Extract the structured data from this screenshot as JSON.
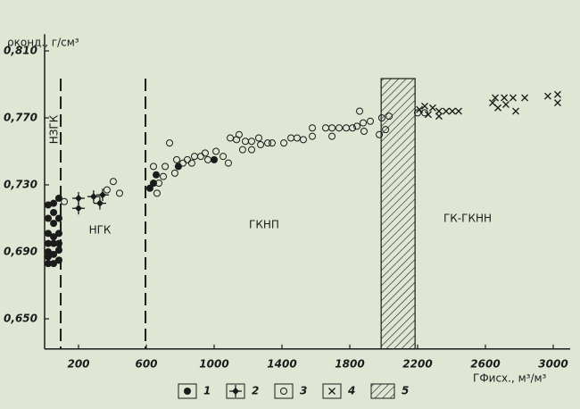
{
  "chart_data": {
    "type": "scatter",
    "y_label": "ρконд., г/см³",
    "x_label": "ГФисх., м³/м³",
    "xlim": [
      0,
      3100
    ],
    "ylim": [
      0.632,
      0.82
    ],
    "xticks": [
      200,
      600,
      1000,
      1400,
      1800,
      2200,
      2600,
      3000
    ],
    "yticks": [
      {
        "value": 0.65,
        "label": "0,650"
      },
      {
        "value": 0.69,
        "label": "0,690"
      },
      {
        "value": 0.73,
        "label": "0,730"
      },
      {
        "value": 0.77,
        "label": "0,770"
      },
      {
        "value": 0.81,
        "label": "0,810"
      }
    ],
    "boundaries": [
      95,
      595
    ],
    "annotations": [
      "НЗГК",
      "НГК",
      "ГКНП",
      "ГК-ГКНН"
    ],
    "band": {
      "name": "5",
      "range": [
        1985,
        2185
      ]
    },
    "color": "#1b1b1b",
    "series": [
      {
        "name": "1",
        "marker": "filled-circle",
        "x": [
          21,
          53,
          84,
          53,
          21,
          53,
          84,
          21,
          53,
          84,
          21,
          53,
          84,
          21,
          53,
          84,
          21,
          53,
          84,
          21,
          621,
          642,
          658,
          789,
          1000
        ],
        "values": [
          0.718,
          0.719,
          0.722,
          0.7135,
          0.71,
          0.707,
          0.71,
          0.701,
          0.699,
          0.701,
          0.695,
          0.695,
          0.695,
          0.69,
          0.6885,
          0.691,
          0.683,
          0.683,
          0.685,
          0.687,
          0.728,
          0.731,
          0.736,
          0.741,
          0.745
        ]
      },
      {
        "name": "2",
        "marker": "crossed-diamond",
        "x": [
          200,
          200,
          289,
          342,
          326
        ],
        "values": [
          0.722,
          0.716,
          0.723,
          0.724,
          0.719
        ]
      },
      {
        "name": "3",
        "marker": "open-circle",
        "x": [
          116,
          368,
          405,
          442,
          642,
          663,
          674,
          700,
          737,
          711,
          768,
          779,
          816,
          842,
          868,
          884,
          921,
          947,
          963,
          1011,
          1053,
          1084,
          1095,
          1132,
          1147,
          1168,
          1184,
          1221,
          1221,
          1263,
          1274,
          1316,
          1342,
          1411,
          1453,
          1489,
          1526,
          1579,
          1579,
          1658,
          1695,
          1695,
          1737,
          1779,
          1816,
          1842,
          1858,
          1879,
          1884,
          1921,
          1974,
          1989,
          2011,
          2032,
          2200,
          2242
        ],
        "values": [
          0.72,
          0.727,
          0.732,
          0.725,
          0.741,
          0.725,
          0.731,
          0.735,
          0.755,
          0.741,
          0.737,
          0.745,
          0.743,
          0.745,
          0.743,
          0.747,
          0.747,
          0.749,
          0.745,
          0.75,
          0.747,
          0.743,
          0.758,
          0.757,
          0.76,
          0.751,
          0.756,
          0.756,
          0.751,
          0.758,
          0.754,
          0.755,
          0.755,
          0.755,
          0.758,
          0.758,
          0.757,
          0.759,
          0.764,
          0.764,
          0.764,
          0.759,
          0.764,
          0.764,
          0.764,
          0.765,
          0.774,
          0.767,
          0.762,
          0.768,
          0.76,
          0.77,
          0.763,
          0.771,
          0.773,
          0.773
        ]
      },
      {
        "name": "4",
        "marker": "cross",
        "x": [
          2211,
          2242,
          2263,
          2289,
          2326,
          2326,
          2368,
          2405,
          2442,
          2642,
          2658,
          2674,
          2711,
          2721,
          2763,
          2779,
          2832,
          2968,
          3026,
          3026
        ],
        "values": [
          0.775,
          0.777,
          0.772,
          0.776,
          0.774,
          0.771,
          0.774,
          0.774,
          0.774,
          0.779,
          0.782,
          0.776,
          0.782,
          0.778,
          0.782,
          0.774,
          0.782,
          0.783,
          0.784,
          0.779
        ]
      }
    ]
  }
}
